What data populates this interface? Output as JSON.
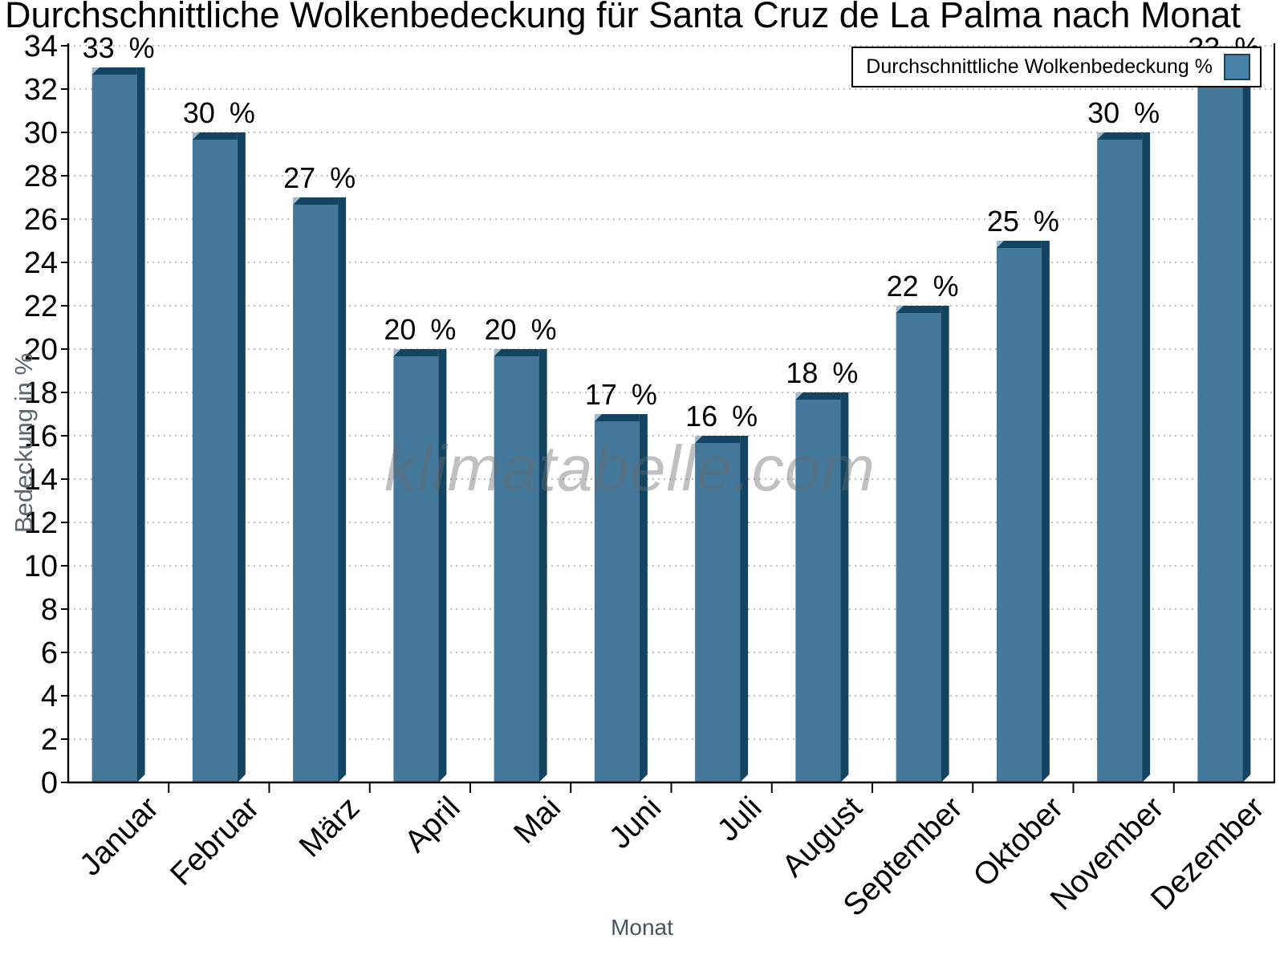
{
  "title": "Durchschnittliche Wolkenbedeckung für Santa Cruz de La Palma nach Monat",
  "watermark": "klimatabelle.com",
  "legend": {
    "label": "Durchschnittliche Wolkenbedeckung %"
  },
  "axes": {
    "x_title": "Monat",
    "y_title": "Bedeckung in %"
  },
  "colors": {
    "bar_face": "#44789b",
    "bar_shade": "#134563",
    "bar_highlight": "#a4bac9",
    "legend_swatch": "#4a81a8",
    "legend_swatch_border": "#134563",
    "grid": "#b4b4b4",
    "axis": "#000000",
    "tick_label": "#000000",
    "value_label": "#000000"
  },
  "chart_data": {
    "type": "bar",
    "title": "Durchschnittliche Wolkenbedeckung für Santa Cruz de La Palma nach Monat",
    "xlabel": "Monat",
    "ylabel": "Bedeckung in %",
    "categories": [
      "Januar",
      "Februar",
      "März",
      "April",
      "Mai",
      "Juni",
      "Juli",
      "August",
      "September",
      "Oktober",
      "November",
      "Dezember"
    ],
    "values": [
      33,
      30,
      27,
      20,
      20,
      17,
      16,
      18,
      22,
      25,
      30,
      33
    ],
    "value_suffix": " %",
    "series_name": "Durchschnittliche Wolkenbedeckung %",
    "ylim": [
      0,
      34
    ],
    "ytick_step": 2,
    "grid": "horizontal-dotted",
    "legend_position": "top-right",
    "bar_style": "3d-bevel"
  }
}
